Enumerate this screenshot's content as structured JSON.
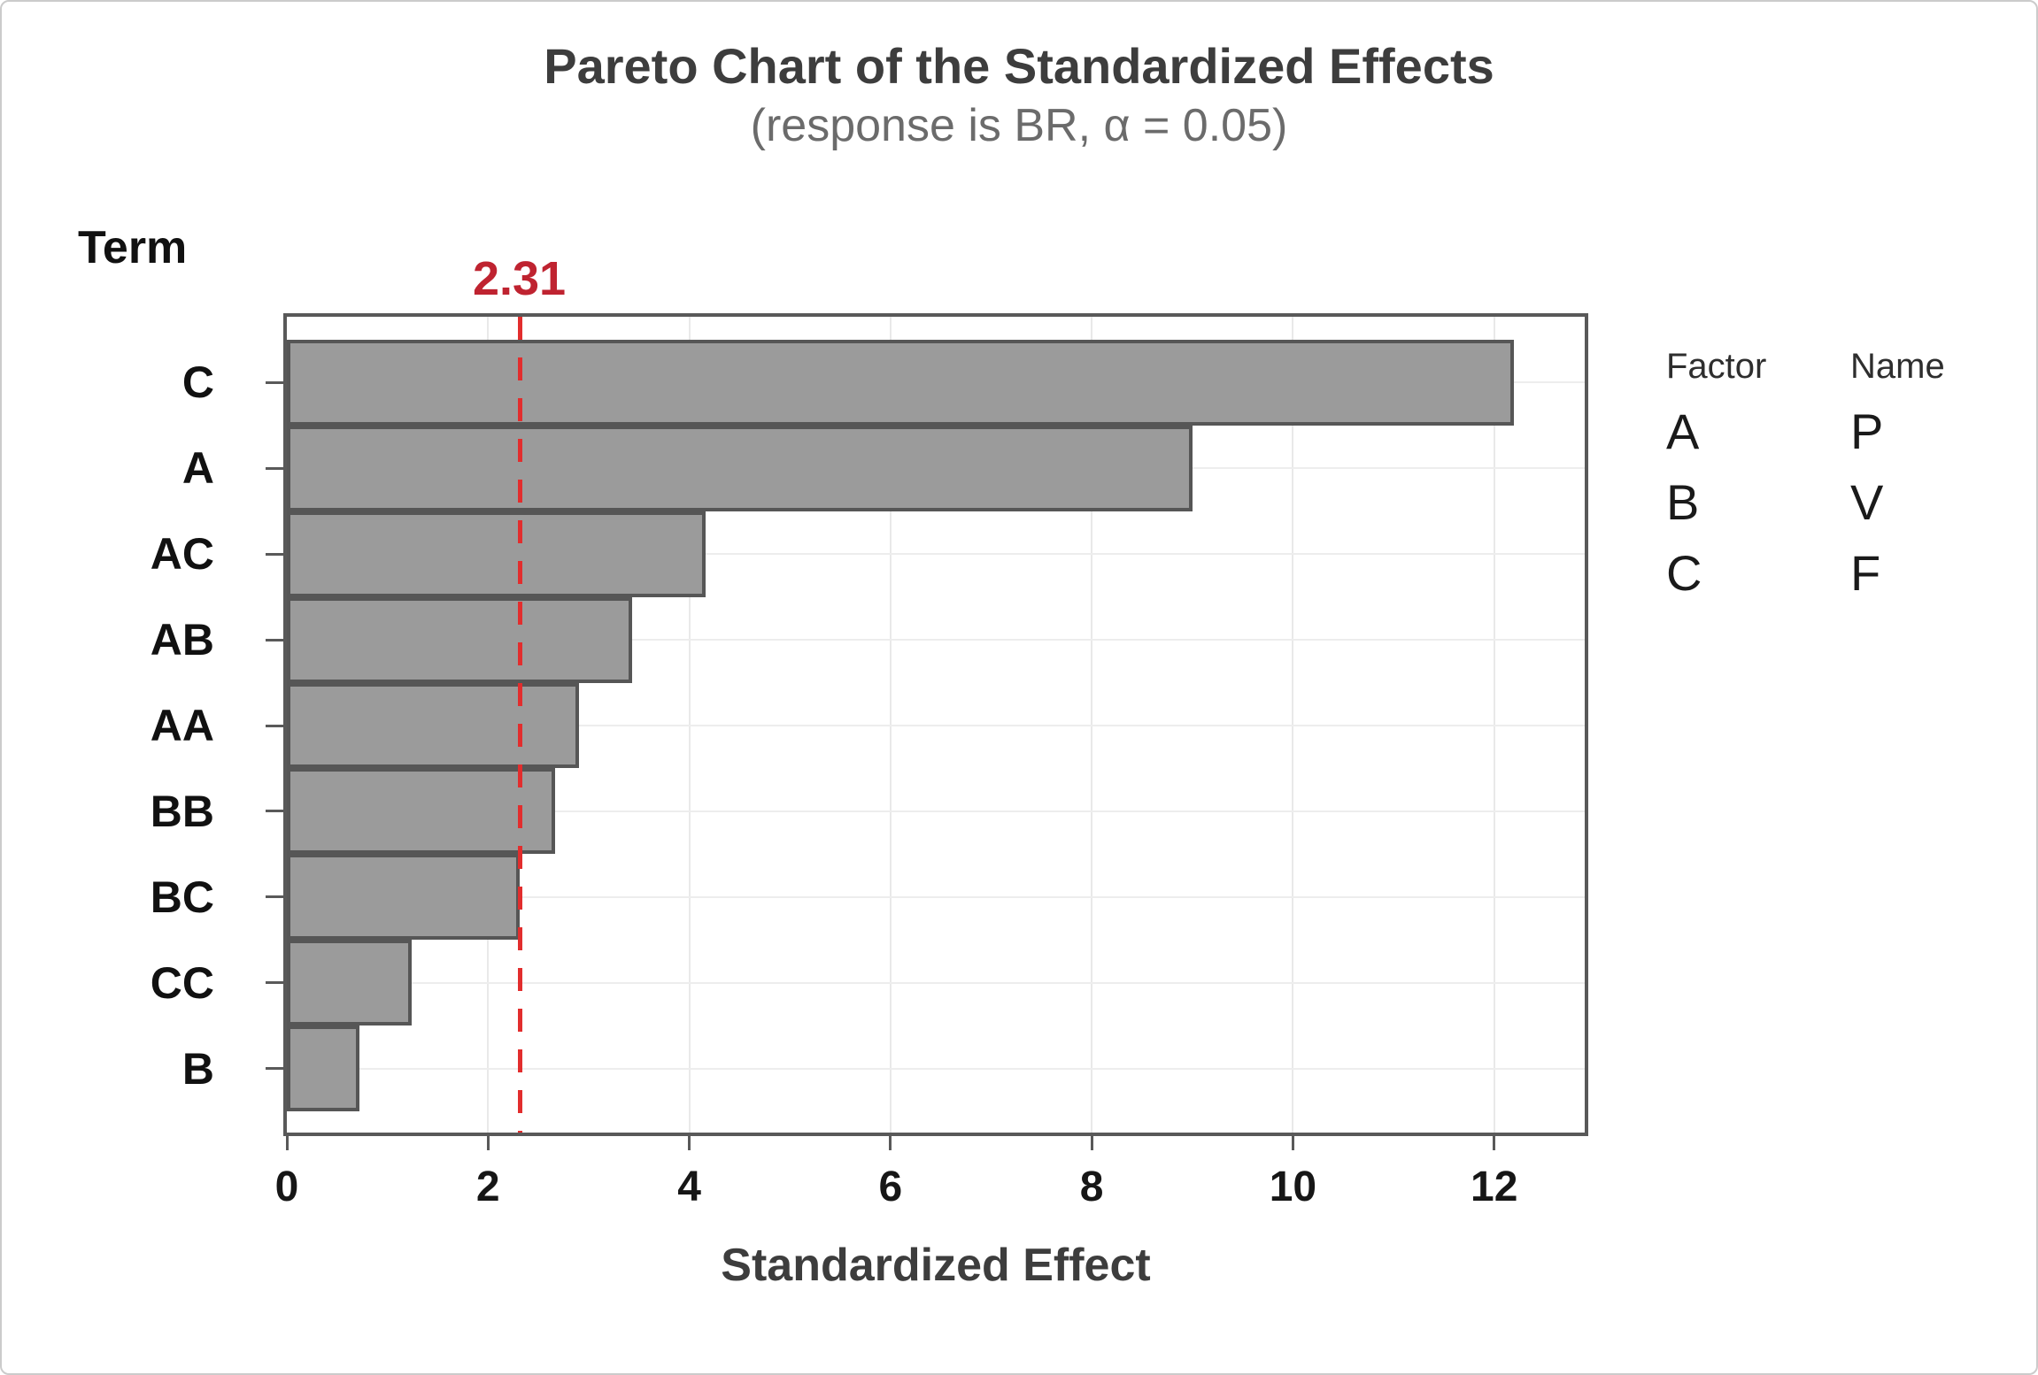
{
  "title": "Pareto Chart of the Standardized Effects",
  "subtitle": "(response is BR, α = 0.05)",
  "term_axis_header": "Term",
  "x_axis_title": "Standardized Effect",
  "reference_line": {
    "value": 2.31,
    "label": "2.31",
    "color": "#e22d2d",
    "label_color": "#bf2330"
  },
  "legend": {
    "headers": [
      "Factor",
      "Name"
    ],
    "rows": [
      {
        "factor": "A",
        "name": "P"
      },
      {
        "factor": "B",
        "name": "V"
      },
      {
        "factor": "C",
        "name": "F"
      }
    ]
  },
  "chart_data": {
    "type": "bar",
    "orientation": "horizontal",
    "title": "Pareto Chart of the Standardized Effects",
    "subtitle": "(response is BR, α = 0.05)",
    "response": "BR",
    "alpha": 0.05,
    "xlabel": "Standardized Effect",
    "ylabel": "Term",
    "categories": [
      "C",
      "A",
      "AC",
      "AB",
      "AA",
      "BB",
      "BC",
      "CC",
      "B"
    ],
    "values": [
      12.2,
      9.0,
      4.16,
      3.43,
      2.9,
      2.67,
      2.31,
      1.24,
      0.72
    ],
    "reference_value": 2.31,
    "xlim": [
      0,
      12.9
    ],
    "xticks": [
      0,
      2,
      4,
      6,
      8,
      10,
      12
    ],
    "grid": true,
    "legend_position": "right",
    "bar_color": "#9b9b9b",
    "bar_border_color": "#565656",
    "frame_color": "#595959",
    "gridline_color": "#e9e9e9"
  }
}
